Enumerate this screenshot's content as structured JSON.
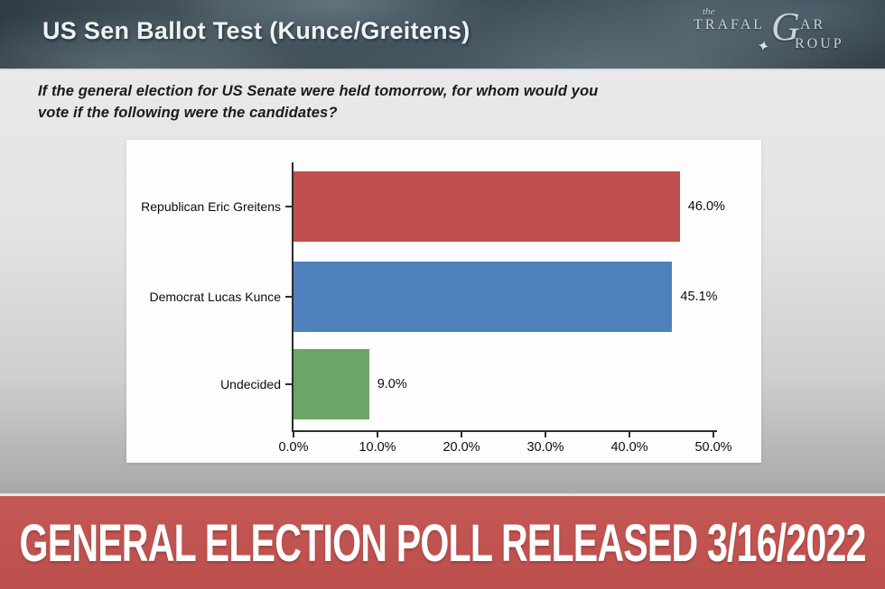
{
  "header": {
    "title": "US Sen Ballot Test (Kunce/Greitens)",
    "logo": {
      "the": "the",
      "part1": "TRAFAL",
      "g": "G",
      "part2": "AR",
      "part3": "ROUP",
      "star": "✦"
    }
  },
  "question": "If the general election for US Senate were held tomorrow, for whom would you vote if the following were the candidates?",
  "chart_data": {
    "type": "bar",
    "orientation": "horizontal",
    "title": "US Sen Ballot Test (Kunce/Greitens)",
    "categories": [
      "Republican Eric Greitens",
      "Democrat Lucas Kunce",
      "Undecided"
    ],
    "values": [
      46.0,
      45.1,
      9.0
    ],
    "value_labels": [
      "46.0%",
      "45.1%",
      "9.0%"
    ],
    "bar_colors": [
      "#bf4f4c",
      "#4f81bd",
      "#6ca565"
    ],
    "xlim": [
      0,
      50
    ],
    "x_tick_values": [
      0,
      10,
      20,
      30,
      40,
      50
    ],
    "x_tick_labels": [
      "0.0%",
      "10.0%",
      "20.0%",
      "30.0%",
      "40.0%",
      "50.0%"
    ],
    "grid": false,
    "legend": false
  },
  "footer": {
    "banner": "GENERAL ELECTION POLL RELEASED 3/16/2022",
    "background": "#c05350"
  }
}
